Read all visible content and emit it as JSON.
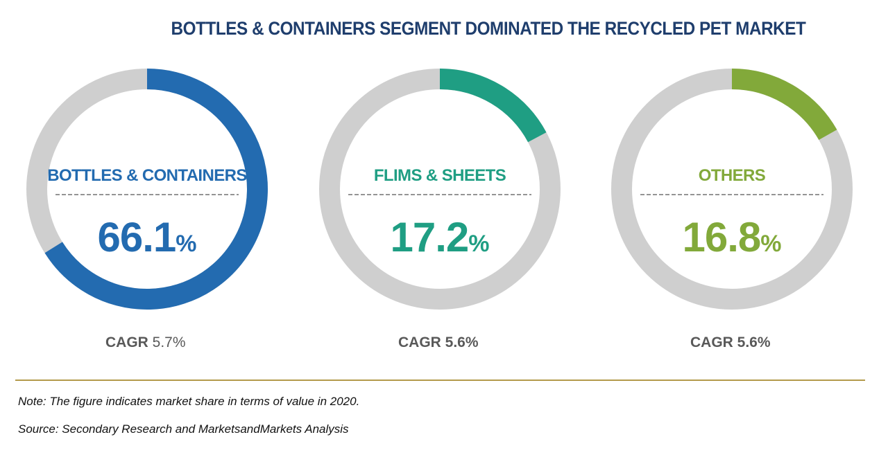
{
  "title": "BOTTLES & CONTAINERS SEGMENT DOMINATED THE RECYCLED PET MARKET",
  "chart_data": {
    "type": "pie",
    "title": "BOTTLES & CONTAINERS SEGMENT DOMINATED THE RECYCLED PET MARKET",
    "unit": "%",
    "track_color": "#cfcfcf",
    "segments": [
      {
        "label": "BOTTLES & CONTAINERS",
        "value": 66.1,
        "display_value": "66.1",
        "cagr_label": "CAGR",
        "cagr_value": "5.7%",
        "color": "#236bb0"
      },
      {
        "label": "FLIMS & SHEETS",
        "value": 17.2,
        "display_value": "17.2",
        "cagr_label": "CAGR",
        "cagr_value": "5.6%",
        "color": "#1f9e83"
      },
      {
        "label": "OTHERS",
        "value": 16.8,
        "display_value": "16.8",
        "cagr_label": "CAGR",
        "cagr_value": "5.6%",
        "color": "#82a93a"
      }
    ]
  },
  "footer": {
    "note": "Note: The figure indicates market share in terms of value in 2020.",
    "source": "Source: Secondary Research and MarketsandMarkets Analysis"
  }
}
